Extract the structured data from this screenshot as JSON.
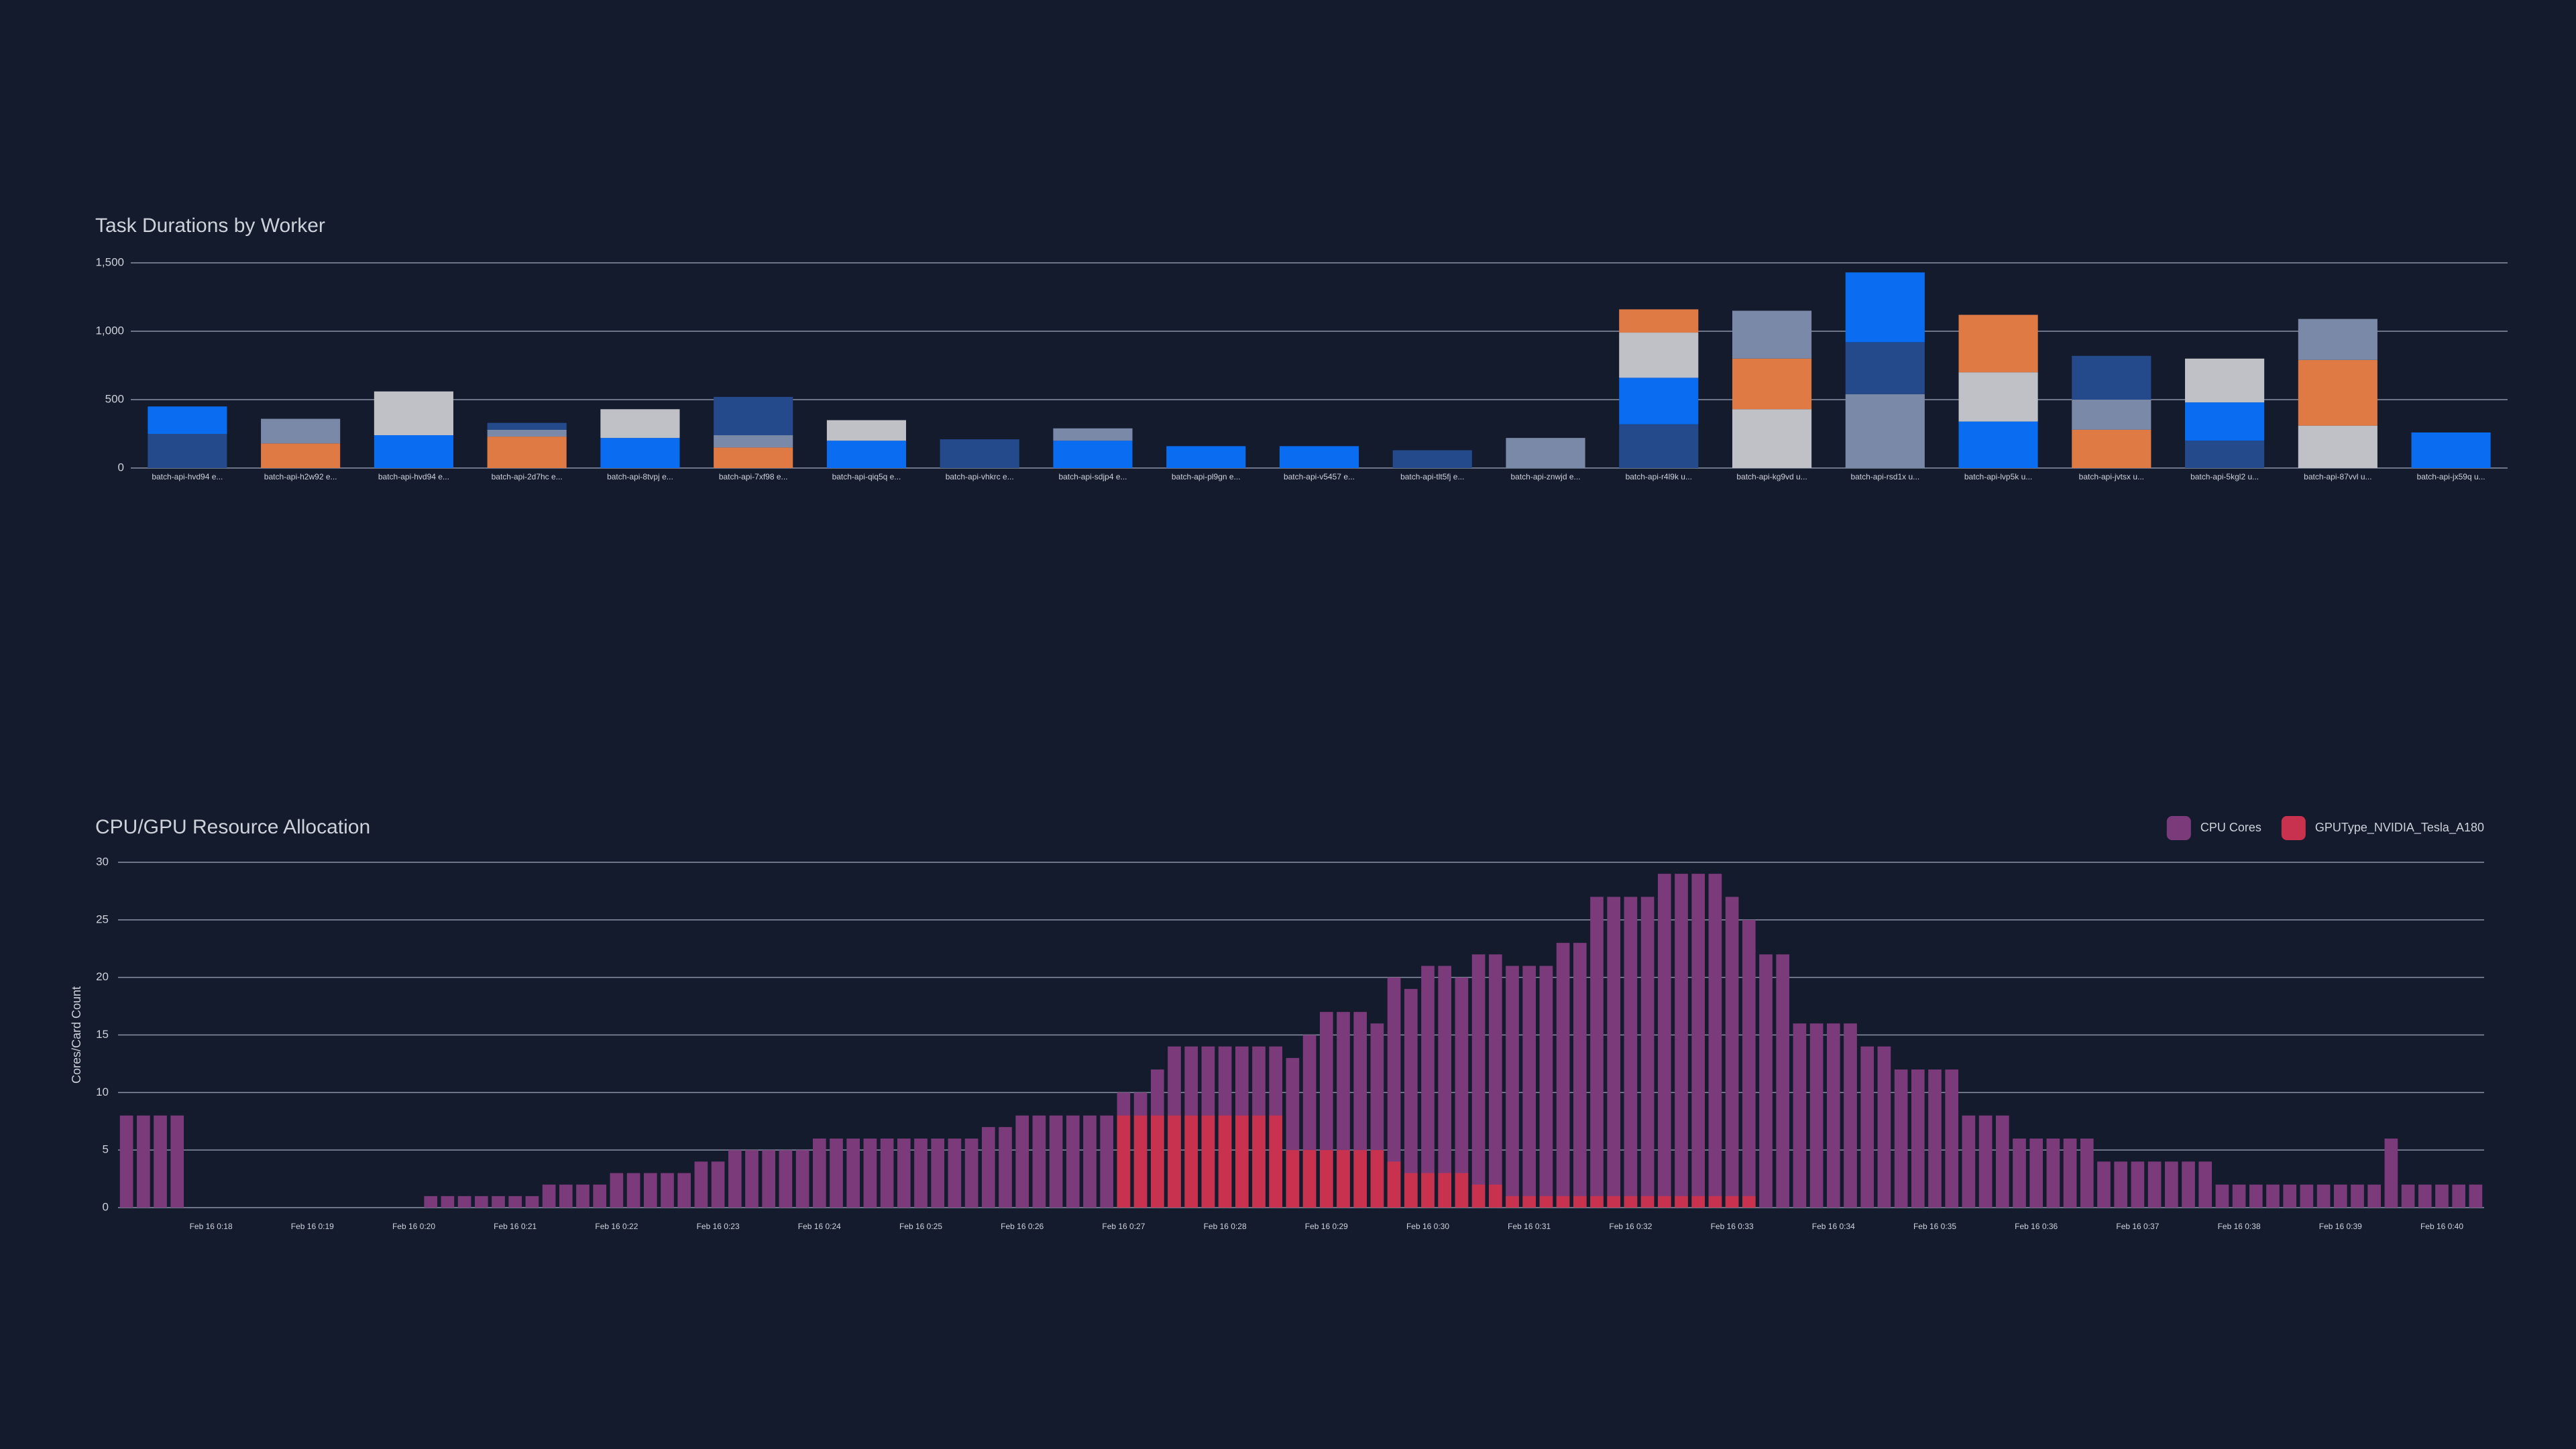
{
  "chart_data": [
    {
      "type": "bar",
      "barmode": "stack",
      "title": "Task Durations by Worker",
      "categories": [
        "batch-api-hvd94 e...",
        "batch-api-h2w92 e...",
        "batch-api-hvd94 e...",
        "batch-api-2d7hc e...",
        "batch-api-8tvpj e...",
        "batch-api-7xf98 e...",
        "batch-api-qiq5q e...",
        "batch-api-vhkrc e...",
        "batch-api-sdjp4 e...",
        "batch-api-pl9gn e...",
        "batch-api-v5457 e...",
        "batch-api-tlt5fj e...",
        "batch-api-znwjd e...",
        "batch-api-r4l9k u...",
        "batch-api-kg9vd u...",
        "batch-api-rsd1x u...",
        "batch-api-lvp5k u...",
        "batch-api-jvtsx u...",
        "batch-api-5kgl2 u...",
        "batch-api-87vvl u...",
        "batch-api-jx59q u..."
      ],
      "series": [
        {
          "values": [
            250,
            180,
            240,
            230,
            220,
            150,
            200,
            210,
            200,
            160,
            160,
            130,
            220,
            320,
            430,
            540,
            340,
            280,
            200,
            310,
            260
          ],
          "colors": [
            "#244a8c",
            "#e07a45",
            "#0a6cf0",
            "#e07a45",
            "#0a6cf0",
            "#e07a45",
            "#0a6cf0",
            "#244a8c",
            "#0a6cf0",
            "#0a6cf0",
            "#0a6cf0",
            "#244a8c",
            "#7a89a8",
            "#244a8c",
            "#bfc1c6",
            "#7a89a8",
            "#0a6cf0",
            "#e07a45",
            "#244a8c",
            "#bfc1c6",
            "#0a6cf0"
          ]
        },
        {
          "values": [
            200,
            180,
            320,
            50,
            210,
            90,
            150,
            null,
            90,
            null,
            null,
            null,
            null,
            340,
            370,
            380,
            360,
            220,
            280,
            480,
            null
          ],
          "colors": [
            "#0a6cf0",
            "#7a89a8",
            "#bfc1c6",
            "#7a89a8",
            "#bfc1c6",
            "#7a89a8",
            "#bfc1c6",
            null,
            "#7a89a8",
            null,
            null,
            null,
            null,
            "#0a6cf0",
            "#e07a45",
            "#244a8c",
            "#bfc1c6",
            "#7a89a8",
            "#0a6cf0",
            "#e07a45",
            null
          ]
        },
        {
          "values": [
            null,
            null,
            null,
            50,
            null,
            280,
            null,
            null,
            null,
            null,
            null,
            null,
            null,
            330,
            350,
            510,
            420,
            320,
            320,
            300,
            null
          ],
          "colors": [
            null,
            null,
            null,
            "#244a8c",
            null,
            "#244a8c",
            null,
            null,
            null,
            null,
            null,
            null,
            null,
            "#bfc1c6",
            "#7a89a8",
            "#0a6cf0",
            "#e07a45",
            "#244a8c",
            "#bfc1c6",
            "#7a89a8",
            null
          ]
        },
        {
          "values": [
            null,
            null,
            null,
            null,
            null,
            null,
            null,
            null,
            null,
            null,
            null,
            null,
            null,
            170,
            null,
            null,
            null,
            null,
            null,
            null,
            null
          ],
          "colors": [
            null,
            null,
            null,
            null,
            null,
            null,
            null,
            null,
            null,
            null,
            null,
            null,
            null,
            "#e07a45",
            null,
            null,
            null,
            null,
            null,
            null,
            null
          ]
        }
      ],
      "ylim": [
        0,
        1500
      ],
      "yticks": [
        0,
        500,
        {
          "value": 1000,
          "label": "1,000"
        },
        {
          "value": 1500,
          "label": "1,500"
        }
      ],
      "grid": true
    },
    {
      "type": "bar",
      "barmode": "overlay",
      "title": "CPU/GPU Resource Allocation",
      "ylabel": "Cores/Card Count",
      "legend": "top-right",
      "categories": [
        null,
        null,
        null,
        null,
        null,
        "Feb 16 0:18",
        null,
        null,
        null,
        null,
        null,
        "Feb 16 0:19",
        null,
        null,
        null,
        null,
        null,
        "Feb 16 0:20",
        null,
        null,
        null,
        null,
        null,
        "Feb 16 0:21",
        null,
        null,
        null,
        null,
        null,
        "Feb 16 0:22",
        null,
        null,
        null,
        null,
        null,
        "Feb 16 0:23",
        null,
        null,
        null,
        null,
        null,
        "Feb 16 0:24",
        null,
        null,
        null,
        null,
        null,
        "Feb 16 0:25",
        null,
        null,
        null,
        null,
        null,
        "Feb 16 0:26",
        null,
        null,
        null,
        null,
        null,
        "Feb 16 0:27",
        null,
        null,
        null,
        null,
        null,
        "Feb 16 0:28",
        null,
        null,
        null,
        null,
        null,
        "Feb 16 0:29",
        null,
        null,
        null,
        null,
        null,
        "Feb 16 0:30",
        null,
        null,
        null,
        null,
        null,
        "Feb 16 0:31",
        null,
        null,
        null,
        null,
        null,
        "Feb 16 0:32",
        null,
        null,
        null,
        null,
        null,
        "Feb 16 0:33",
        null,
        null,
        null,
        null,
        null,
        "Feb 16 0:34",
        null,
        null,
        null,
        null,
        null,
        "Feb 16 0:35",
        null,
        null,
        null,
        null,
        null,
        "Feb 16 0:36",
        null,
        null,
        null,
        null,
        null,
        "Feb 16 0:37",
        null,
        null,
        null,
        null,
        null,
        "Feb 16 0:38",
        null,
        null,
        null,
        null,
        null,
        "Feb 16 0:39",
        null,
        null,
        null,
        null,
        null,
        "Feb 16 0:40",
        null,
        null
      ],
      "series": [
        {
          "name": "CPU Cores",
          "color": "#7b3b7a",
          "values": [
            8,
            8,
            8,
            8,
            0,
            0,
            0,
            0,
            0,
            0,
            0,
            0,
            0,
            0,
            0,
            0,
            0,
            0,
            1,
            1,
            1,
            1,
            1,
            1,
            1,
            2,
            2,
            2,
            2,
            3,
            3,
            3,
            3,
            3,
            4,
            4,
            5,
            5,
            5,
            5,
            5,
            6,
            6,
            6,
            6,
            6,
            6,
            6,
            6,
            6,
            6,
            7,
            7,
            8,
            8,
            8,
            8,
            8,
            8,
            10,
            10,
            12,
            14,
            14,
            14,
            14,
            14,
            14,
            14,
            13,
            15,
            17,
            17,
            17,
            16,
            20,
            19,
            21,
            21,
            20,
            22,
            22,
            21,
            21,
            21,
            23,
            23,
            27,
            27,
            27,
            27,
            29,
            29,
            29,
            29,
            27,
            25,
            22,
            22,
            16,
            16,
            16,
            16,
            14,
            14,
            12,
            12,
            12,
            12,
            8,
            8,
            8,
            6,
            6,
            6,
            6,
            6,
            4,
            4,
            4,
            4,
            4,
            4,
            4,
            2,
            2,
            2,
            2,
            2,
            2,
            2,
            2,
            2,
            2,
            6,
            2,
            2,
            2,
            2,
            2
          ]
        },
        {
          "name": "GPUType_NVIDIA_Tesla_A180",
          "color": "#c8324e",
          "values": [
            0,
            0,
            0,
            0,
            0,
            0,
            0,
            0,
            0,
            0,
            0,
            0,
            0,
            0,
            0,
            0,
            0,
            0,
            0,
            0,
            0,
            0,
            0,
            0,
            0,
            0,
            0,
            0,
            0,
            0,
            0,
            0,
            0,
            0,
            0,
            0,
            0,
            0,
            0,
            0,
            0,
            0,
            0,
            0,
            0,
            0,
            0,
            0,
            0,
            0,
            0,
            0,
            0,
            0,
            0,
            0,
            0,
            0,
            0,
            8,
            8,
            8,
            8,
            8,
            8,
            8,
            8,
            8,
            8,
            5,
            5,
            5,
            5,
            5,
            5,
            4,
            3,
            3,
            3,
            3,
            2,
            2,
            1,
            1,
            1,
            1,
            1,
            1,
            1,
            1,
            1,
            1,
            1,
            1,
            1,
            1,
            1,
            0,
            0,
            0,
            0,
            0,
            0,
            0,
            0,
            0,
            0,
            0,
            0,
            0,
            0,
            0,
            0,
            0,
            0,
            0,
            0,
            0,
            0,
            0,
            0,
            0,
            0,
            0,
            0,
            0,
            0,
            0,
            0,
            0,
            0,
            0,
            0,
            0,
            0,
            0,
            0,
            0,
            0,
            0
          ]
        }
      ],
      "ylim": [
        0,
        30
      ],
      "yticks": [
        0,
        5,
        10,
        15,
        20,
        25,
        30
      ],
      "grid": true
    }
  ]
}
